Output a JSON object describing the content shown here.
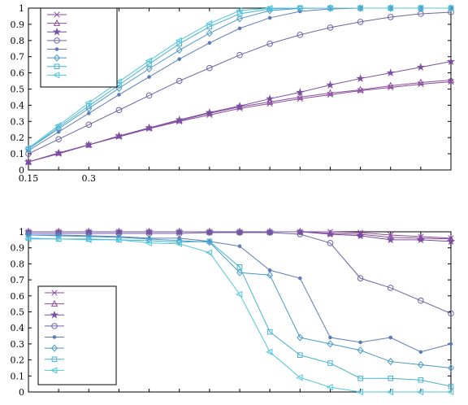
{
  "colors": {
    "s1": "#8b4a9e",
    "s2": "#8b4a9e",
    "s3": "#7a4ea0",
    "s4": "#6f62a8",
    "s5": "#5d7cb8",
    "s6": "#4a98c7",
    "s7": "#46b2d2",
    "s8": "#52c6dc"
  },
  "chart_data": [
    {
      "type": "line",
      "xlim": [
        0.15,
        1.2
      ],
      "ylim": [
        0,
        1
      ],
      "x_ticks": [
        0.15,
        0.3
      ],
      "y_ticks": [
        0,
        0.1,
        0.2,
        0.3,
        0.4,
        0.5,
        0.6,
        0.7,
        0.8,
        0.9,
        1
      ],
      "x_tick_labels": [
        "0.15",
        "0.3"
      ],
      "y_tick_labels": [
        "0",
        "0.1",
        "0.2",
        "0.3",
        "0.4",
        "0.5",
        "0.6",
        "0.7",
        "0.8",
        "0.9",
        "1"
      ],
      "legend": {
        "position": "top-left",
        "entries": 8
      },
      "x": [
        0.15,
        0.225,
        0.3,
        0.375,
        0.45,
        0.525,
        0.6,
        0.675,
        0.75,
        0.825,
        0.9,
        0.975,
        1.05,
        1.125,
        1.2
      ],
      "series": [
        {
          "marker": "x",
          "color_key": "s1",
          "values": [
            0.05,
            0.1,
            0.155,
            0.205,
            0.255,
            0.3,
            0.34,
            0.38,
            0.41,
            0.44,
            0.465,
            0.49,
            0.51,
            0.53,
            0.545
          ]
        },
        {
          "marker": "triangle",
          "color_key": "s2",
          "values": [
            0.05,
            0.105,
            0.155,
            0.21,
            0.26,
            0.305,
            0.35,
            0.39,
            0.42,
            0.45,
            0.475,
            0.495,
            0.52,
            0.54,
            0.555
          ]
        },
        {
          "marker": "star",
          "color_key": "s3",
          "values": [
            0.05,
            0.105,
            0.155,
            0.21,
            0.26,
            0.31,
            0.355,
            0.395,
            0.44,
            0.48,
            0.525,
            0.565,
            0.6,
            0.635,
            0.67
          ]
        },
        {
          "marker": "circle",
          "color_key": "s4",
          "values": [
            0.1,
            0.19,
            0.28,
            0.37,
            0.46,
            0.55,
            0.63,
            0.71,
            0.78,
            0.835,
            0.88,
            0.915,
            0.945,
            0.965,
            0.975
          ]
        },
        {
          "marker": "dot",
          "color_key": "s5",
          "values": [
            0.12,
            0.235,
            0.35,
            0.465,
            0.575,
            0.685,
            0.785,
            0.875,
            0.94,
            0.98,
            0.995,
            1.0,
            1.0,
            1.0,
            1.0
          ]
        },
        {
          "marker": "diamond",
          "color_key": "s6",
          "values": [
            0.13,
            0.255,
            0.38,
            0.505,
            0.625,
            0.74,
            0.845,
            0.935,
            0.985,
            0.998,
            1.0,
            1.0,
            1.0,
            1.0,
            1.0
          ]
        },
        {
          "marker": "square",
          "color_key": "s7",
          "values": [
            0.13,
            0.265,
            0.395,
            0.525,
            0.655,
            0.78,
            0.885,
            0.965,
            0.995,
            1.0,
            1.0,
            1.0,
            1.0,
            1.0,
            1.0
          ]
        },
        {
          "marker": "triangle-left",
          "color_key": "s8",
          "values": [
            0.135,
            0.275,
            0.415,
            0.545,
            0.675,
            0.8,
            0.905,
            0.985,
            1.0,
            1.0,
            1.0,
            1.0,
            1.0,
            1.0,
            1.0
          ]
        }
      ]
    },
    {
      "type": "line",
      "xlim": [
        0.15,
        1.2
      ],
      "ylim": [
        0,
        1
      ],
      "y_ticks": [
        0,
        0.1,
        0.2,
        0.3,
        0.4,
        0.5,
        0.6,
        0.7,
        0.8,
        0.9,
        1
      ],
      "y_tick_labels": [
        "0",
        "0.1",
        "0.2",
        "0.3",
        "0.4",
        "0.5",
        "0.6",
        "0.7",
        "0.8",
        "0.9",
        "1"
      ],
      "legend": {
        "position": "bottom-left",
        "entries": 8
      },
      "x": [
        0.15,
        0.225,
        0.3,
        0.375,
        0.45,
        0.525,
        0.6,
        0.675,
        0.75,
        0.825,
        0.9,
        0.975,
        1.05,
        1.125,
        1.2
      ],
      "series": [
        {
          "marker": "x",
          "color_key": "s1",
          "values": [
            1.0,
            1.0,
            1.0,
            1.0,
            1.0,
            1.0,
            1.0,
            1.0,
            1.0,
            1.0,
            1.0,
            0.995,
            0.98,
            0.97,
            0.96
          ]
        },
        {
          "marker": "triangle",
          "color_key": "s2",
          "values": [
            1.0,
            1.0,
            1.0,
            1.0,
            1.0,
            1.0,
            1.0,
            1.0,
            1.0,
            1.0,
            0.99,
            0.985,
            0.965,
            0.96,
            0.955
          ]
        },
        {
          "marker": "star",
          "color_key": "s3",
          "values": [
            1.0,
            1.0,
            1.0,
            1.0,
            1.0,
            1.0,
            1.0,
            1.0,
            1.0,
            1.0,
            0.985,
            0.975,
            0.95,
            0.95,
            0.94
          ]
        },
        {
          "marker": "circle",
          "color_key": "s4",
          "values": [
            0.99,
            0.99,
            0.99,
            0.99,
            0.99,
            0.99,
            0.995,
            0.995,
            0.995,
            0.985,
            0.93,
            0.71,
            0.65,
            0.57,
            0.49
          ]
        },
        {
          "marker": "dot",
          "color_key": "s5",
          "values": [
            0.98,
            0.98,
            0.975,
            0.97,
            0.96,
            0.96,
            0.94,
            0.91,
            0.76,
            0.71,
            0.34,
            0.31,
            0.34,
            0.25,
            0.3
          ]
        },
        {
          "marker": "diamond",
          "color_key": "s6",
          "values": [
            0.98,
            0.975,
            0.97,
            0.965,
            0.955,
            0.945,
            0.935,
            0.745,
            0.73,
            0.34,
            0.3,
            0.26,
            0.19,
            0.17,
            0.15
          ]
        },
        {
          "marker": "square",
          "color_key": "s7",
          "values": [
            0.96,
            0.955,
            0.955,
            0.95,
            0.945,
            0.935,
            0.94,
            0.78,
            0.375,
            0.23,
            0.18,
            0.085,
            0.085,
            0.075,
            0.035
          ]
        },
        {
          "marker": "triangle-left",
          "color_key": "s8",
          "values": [
            0.955,
            0.955,
            0.95,
            0.95,
            0.93,
            0.925,
            0.87,
            0.61,
            0.25,
            0.09,
            0.03,
            0.0,
            0.0,
            0.0,
            0.0
          ]
        }
      ]
    }
  ]
}
